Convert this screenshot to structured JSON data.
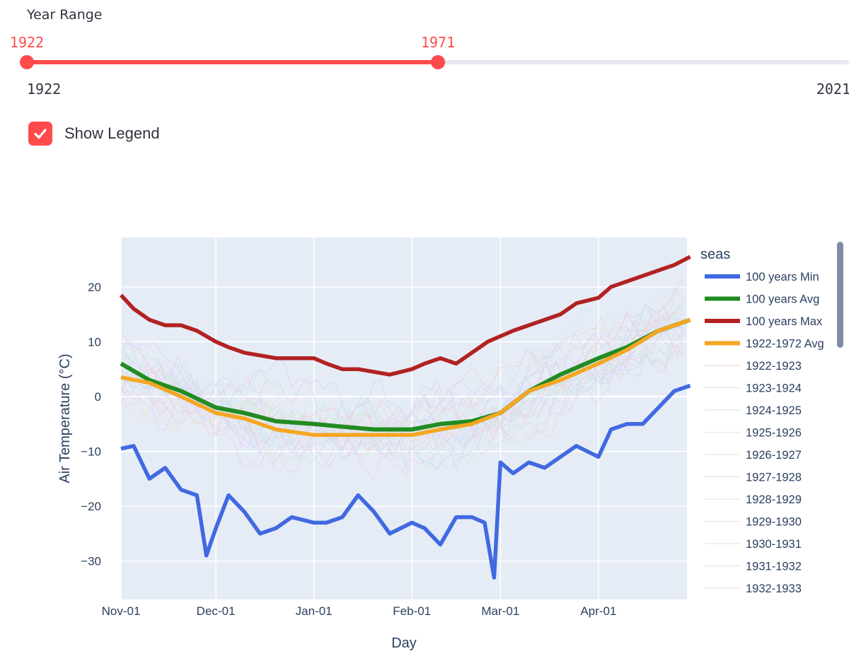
{
  "controls": {
    "year_range_label": "Year Range",
    "slider_low": "1922",
    "slider_high": "1971",
    "slider_min": "1922",
    "slider_max": "2021",
    "slider_low_value": 1922,
    "slider_high_value": 1971,
    "slider_min_value": 1922,
    "slider_max_value": 2021,
    "show_legend_label": "Show Legend",
    "show_legend_checked": true
  },
  "colors": {
    "accent": "#ff4b4b",
    "plot_bg": "#e5ecf6",
    "min": "#4169e1",
    "avg": "#228b22",
    "max": "#b22222",
    "period_avg": "#f5a623"
  },
  "chart_data": {
    "type": "line",
    "title": "",
    "xlabel": "Day",
    "ylabel": "Air Temperature (°C)",
    "xlim": [
      "Nov-01",
      "Apr-30"
    ],
    "ylim": [
      -37,
      29
    ],
    "x_ticks": [
      "Nov-01",
      "Dec-01",
      "Jan-01",
      "Feb-01",
      "Mar-01",
      "Apr-01"
    ],
    "y_ticks": [
      -30,
      -20,
      -10,
      0,
      10,
      20
    ],
    "grid": true,
    "legend": {
      "title": "seas",
      "placement": "right",
      "entries": [
        "100 years Min",
        "100 years Avg",
        "100 years Max",
        "1922-1972 Avg",
        "1922-1923",
        "1923-1924",
        "1924-1925",
        "1925-1926",
        "1926-1927",
        "1927-1928",
        "1928-1929",
        "1929-1930",
        "1930-1931",
        "1931-1932",
        "1932-1933"
      ]
    },
    "series": [
      {
        "name": "100 years Min",
        "x": [
          "Nov-01",
          "Nov-05",
          "Nov-10",
          "Nov-15",
          "Nov-20",
          "Nov-25",
          "Nov-28",
          "Dec-01",
          "Dec-05",
          "Dec-10",
          "Dec-15",
          "Dec-20",
          "Dec-25",
          "Jan-01",
          "Jan-05",
          "Jan-10",
          "Jan-15",
          "Jan-20",
          "Jan-25",
          "Feb-01",
          "Feb-05",
          "Feb-10",
          "Feb-15",
          "Feb-20",
          "Feb-24",
          "Feb-27",
          "Mar-01",
          "Mar-05",
          "Mar-10",
          "Mar-15",
          "Mar-20",
          "Mar-25",
          "Apr-01",
          "Apr-05",
          "Apr-10",
          "Apr-15",
          "Apr-20",
          "Apr-25",
          "Apr-30"
        ],
        "values": [
          -9.5,
          -9,
          -15,
          -13,
          -17,
          -18,
          -29,
          -24,
          -18,
          -21,
          -25,
          -24,
          -22,
          -23,
          -23,
          -22,
          -18,
          -21,
          -25,
          -23,
          -24,
          -27,
          -22,
          -22,
          -23,
          -33,
          -12,
          -14,
          -12,
          -13,
          -11,
          -9,
          -11,
          -6,
          -5,
          -5,
          -2,
          1,
          2
        ]
      },
      {
        "name": "100 years Avg",
        "x": [
          "Nov-01",
          "Nov-10",
          "Nov-20",
          "Dec-01",
          "Dec-10",
          "Dec-20",
          "Jan-01",
          "Jan-10",
          "Jan-20",
          "Feb-01",
          "Feb-10",
          "Feb-20",
          "Mar-01",
          "Mar-10",
          "Mar-20",
          "Apr-01",
          "Apr-10",
          "Apr-20",
          "Apr-30"
        ],
        "values": [
          6,
          3,
          1,
          -2,
          -3,
          -4.5,
          -5,
          -5.5,
          -6,
          -6,
          -5,
          -4.5,
          -3,
          1,
          4,
          7,
          9,
          12,
          14
        ]
      },
      {
        "name": "100 years Max",
        "x": [
          "Nov-01",
          "Nov-05",
          "Nov-10",
          "Nov-15",
          "Nov-20",
          "Nov-25",
          "Dec-01",
          "Dec-05",
          "Dec-10",
          "Dec-15",
          "Dec-20",
          "Dec-25",
          "Jan-01",
          "Jan-05",
          "Jan-10",
          "Jan-15",
          "Jan-20",
          "Jan-25",
          "Feb-01",
          "Feb-05",
          "Feb-10",
          "Feb-15",
          "Feb-20",
          "Feb-25",
          "Mar-01",
          "Mar-05",
          "Mar-10",
          "Mar-15",
          "Mar-20",
          "Mar-25",
          "Apr-01",
          "Apr-05",
          "Apr-10",
          "Apr-15",
          "Apr-20",
          "Apr-25",
          "Apr-30"
        ],
        "values": [
          18.5,
          16,
          14,
          13,
          13,
          12,
          10,
          9,
          8,
          7.5,
          7,
          7,
          7,
          6,
          5,
          5,
          4.5,
          4,
          5,
          6,
          7,
          6,
          8,
          10,
          11,
          12,
          13,
          14,
          15,
          17,
          18,
          20,
          21,
          22,
          23,
          24,
          25.5
        ]
      },
      {
        "name": "1922-1972 Avg",
        "x": [
          "Nov-01",
          "Nov-10",
          "Nov-20",
          "Dec-01",
          "Dec-10",
          "Dec-20",
          "Jan-01",
          "Jan-10",
          "Jan-20",
          "Feb-01",
          "Feb-10",
          "Feb-20",
          "Mar-01",
          "Mar-10",
          "Mar-20",
          "Apr-01",
          "Apr-10",
          "Apr-20",
          "Apr-30"
        ],
        "values": [
          3.5,
          2.5,
          0,
          -3,
          -4,
          -6,
          -7,
          -7,
          -7,
          -7,
          -6,
          -5,
          -3,
          1,
          3,
          6,
          8.5,
          12,
          14
        ]
      }
    ]
  }
}
